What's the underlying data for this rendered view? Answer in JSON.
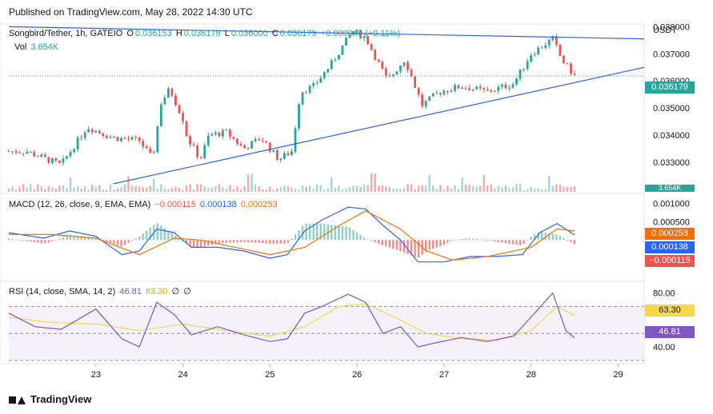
{
  "header": {
    "published": "Published on TradingView.com, May 28, 2022 14:30 UTC"
  },
  "footer": {
    "brand": "TradingView"
  },
  "legend": {
    "symbol": "Songbird/Tether, 1h, GATEIO",
    "o_label": "O",
    "o_value": "0.036153",
    "h_label": "H",
    "h_value": "0.036179",
    "l_label": "L",
    "l_value": "0.036000",
    "c_label": "C",
    "c_value": "0.036179",
    "change": "+0.000040 (+0.11%)",
    "vol_label": "Vol",
    "vol_value": "3.654K",
    "macd_label": "MACD (12, 26, close, 9, EMA, EMA)",
    "macd_hist": "−0.000115",
    "macd_line": "0.000138",
    "macd_signal": "0.000253",
    "rsi_label": "RSI (14, close, SMA, 14, 2)",
    "rsi_value": "46.81",
    "rsi_ma": "63.30",
    "rsi_extra1": "∅",
    "rsi_extra2": "∅"
  },
  "colors": {
    "up": "#26a69a",
    "down": "#ef5350",
    "trend": "#2962ff",
    "macd": "#2962ff",
    "signal": "#ff6d00",
    "rsi": "#7e57c2",
    "rsi_ma": "#f7d64a"
  },
  "badges": {
    "currency": "USDT",
    "price": "0.036179",
    "vol": "3.654K",
    "macd_signal": "0.000253",
    "macd_line": "0.000138",
    "macd_hist": "−0.000115",
    "rsi_ma": "63.30",
    "rsi": "46.81"
  },
  "chart_data": [
    {
      "type": "candlestick",
      "title": "Songbird/Tether, 1h, GATEIO",
      "x_ticks": [
        "23",
        "24",
        "25",
        "26",
        "27",
        "28",
        "29"
      ],
      "y_ticks": [
        "0.038000",
        "0.037000",
        "0.036000",
        "0.035000",
        "0.034000",
        "0.033000"
      ],
      "ylim": [
        0.0322,
        0.0381
      ],
      "ohlc_close_anchors": [
        [
          22.2,
          0.0334
        ],
        [
          22.6,
          0.0329
        ],
        [
          22.9,
          0.0343
        ],
        [
          23.2,
          0.0339
        ],
        [
          23.5,
          0.0338
        ],
        [
          23.65,
          0.0331
        ],
        [
          23.75,
          0.0352
        ],
        [
          23.85,
          0.0357
        ],
        [
          24.0,
          0.0346
        ],
        [
          24.05,
          0.0339
        ],
        [
          24.2,
          0.0331
        ],
        [
          24.3,
          0.034
        ],
        [
          24.5,
          0.0341
        ],
        [
          24.7,
          0.0335
        ],
        [
          24.9,
          0.0339
        ],
        [
          25.1,
          0.0331
        ],
        [
          25.25,
          0.0334
        ],
        [
          25.35,
          0.0356
        ],
        [
          25.5,
          0.0358
        ],
        [
          25.7,
          0.0366
        ],
        [
          25.8,
          0.0371
        ],
        [
          25.95,
          0.03785
        ],
        [
          26.1,
          0.0376
        ],
        [
          26.35,
          0.036
        ],
        [
          26.55,
          0.0368
        ],
        [
          26.75,
          0.0351
        ],
        [
          26.95,
          0.0356
        ],
        [
          27.2,
          0.0358
        ],
        [
          27.5,
          0.0356
        ],
        [
          27.8,
          0.0359
        ],
        [
          28.0,
          0.037
        ],
        [
          28.25,
          0.03755
        ],
        [
          28.35,
          0.0368
        ],
        [
          28.5,
          0.03618
        ]
      ],
      "trendlines": [
        {
          "name": "resistance",
          "from": [
            22.0,
            0.038
          ],
          "to": [
            29.3,
            0.03755
          ]
        },
        {
          "name": "support",
          "from": [
            23.2,
            0.0322
          ],
          "to": [
            29.3,
            0.0365
          ]
        }
      ],
      "last_price": 0.036179,
      "volume_last": "3.654K"
    },
    {
      "type": "line",
      "title": "MACD (12, 26, close, 9, EMA, EMA)",
      "y_ticks": [
        "0.001000",
        "0.000500"
      ],
      "ylim": [
        -0.001,
        0.0011
      ],
      "series": [
        {
          "name": "MACD",
          "points": [
            [
              22.0,
              0.0002
            ],
            [
              22.4,
              5e-05
            ],
            [
              22.7,
              0.00025
            ],
            [
              23.0,
              0.0001
            ],
            [
              23.3,
              -0.0004
            ],
            [
              23.5,
              -0.0003
            ],
            [
              23.7,
              0.0003
            ],
            [
              23.9,
              0.0002
            ],
            [
              24.1,
              -0.0002
            ],
            [
              24.4,
              -0.0002
            ],
            [
              24.7,
              -0.0003
            ],
            [
              25.0,
              -0.0005
            ],
            [
              25.2,
              -0.0004
            ],
            [
              25.4,
              0.00025
            ],
            [
              25.6,
              0.00055
            ],
            [
              25.9,
              0.0009
            ],
            [
              26.1,
              0.00085
            ],
            [
              26.3,
              0.0004
            ],
            [
              26.5,
              0.0
            ],
            [
              26.7,
              -0.0006
            ],
            [
              27.0,
              -0.0006
            ],
            [
              27.3,
              -0.00045
            ],
            [
              27.6,
              -0.00045
            ],
            [
              27.9,
              -0.0004
            ],
            [
              28.1,
              0.0002
            ],
            [
              28.3,
              0.00045
            ],
            [
              28.5,
              0.00014
            ]
          ]
        },
        {
          "name": "Signal",
          "points": [
            [
              22.0,
              0.00015
            ],
            [
              22.5,
              0.00015
            ],
            [
              23.0,
              5e-05
            ],
            [
              23.5,
              -0.0004
            ],
            [
              23.9,
              5e-05
            ],
            [
              24.2,
              0.0
            ],
            [
              24.6,
              -0.0002
            ],
            [
              25.0,
              -0.0004
            ],
            [
              25.4,
              -0.0002
            ],
            [
              25.8,
              0.0004
            ],
            [
              26.1,
              0.0008
            ],
            [
              26.5,
              0.0003
            ],
            [
              26.8,
              -0.0003
            ],
            [
              27.1,
              -0.00055
            ],
            [
              27.5,
              -0.00045
            ],
            [
              28.0,
              -0.0002
            ],
            [
              28.3,
              0.0003
            ],
            [
              28.5,
              0.00025
            ]
          ]
        }
      ],
      "histogram_last": -0.000115
    },
    {
      "type": "line",
      "title": "RSI (14, close, SMA, 14, 2)",
      "y_ticks": [
        "80.00",
        "40.00"
      ],
      "ylim": [
        30,
        85
      ],
      "bands": [
        70,
        50,
        30
      ],
      "series": [
        {
          "name": "RSI",
          "points": [
            [
              22.0,
              65
            ],
            [
              22.3,
              55
            ],
            [
              22.6,
              53
            ],
            [
              23.0,
              68
            ],
            [
              23.3,
              46
            ],
            [
              23.5,
              40
            ],
            [
              23.7,
              73
            ],
            [
              23.9,
              64
            ],
            [
              24.1,
              49
            ],
            [
              24.4,
              55
            ],
            [
              24.7,
              49
            ],
            [
              25.0,
              44
            ],
            [
              25.2,
              46
            ],
            [
              25.4,
              65
            ],
            [
              25.6,
              70
            ],
            [
              25.9,
              79
            ],
            [
              26.1,
              73
            ],
            [
              26.3,
              50
            ],
            [
              26.5,
              55
            ],
            [
              26.7,
              40
            ],
            [
              26.9,
              43
            ],
            [
              27.2,
              47
            ],
            [
              27.5,
              44
            ],
            [
              27.8,
              48
            ],
            [
              28.0,
              62
            ],
            [
              28.25,
              80
            ],
            [
              28.4,
              52
            ],
            [
              28.5,
              46.81
            ]
          ]
        },
        {
          "name": "RSI MA",
          "points": [
            [
              22.0,
              62
            ],
            [
              22.5,
              58
            ],
            [
              23.0,
              57
            ],
            [
              23.5,
              52
            ],
            [
              24.0,
              57
            ],
            [
              24.5,
              52
            ],
            [
              25.0,
              48
            ],
            [
              25.4,
              55
            ],
            [
              25.8,
              70
            ],
            [
              26.1,
              72
            ],
            [
              26.5,
              60
            ],
            [
              26.8,
              50
            ],
            [
              27.2,
              46
            ],
            [
              27.6,
              45
            ],
            [
              28.0,
              52
            ],
            [
              28.3,
              70
            ],
            [
              28.5,
              63.3
            ]
          ]
        }
      ]
    }
  ]
}
